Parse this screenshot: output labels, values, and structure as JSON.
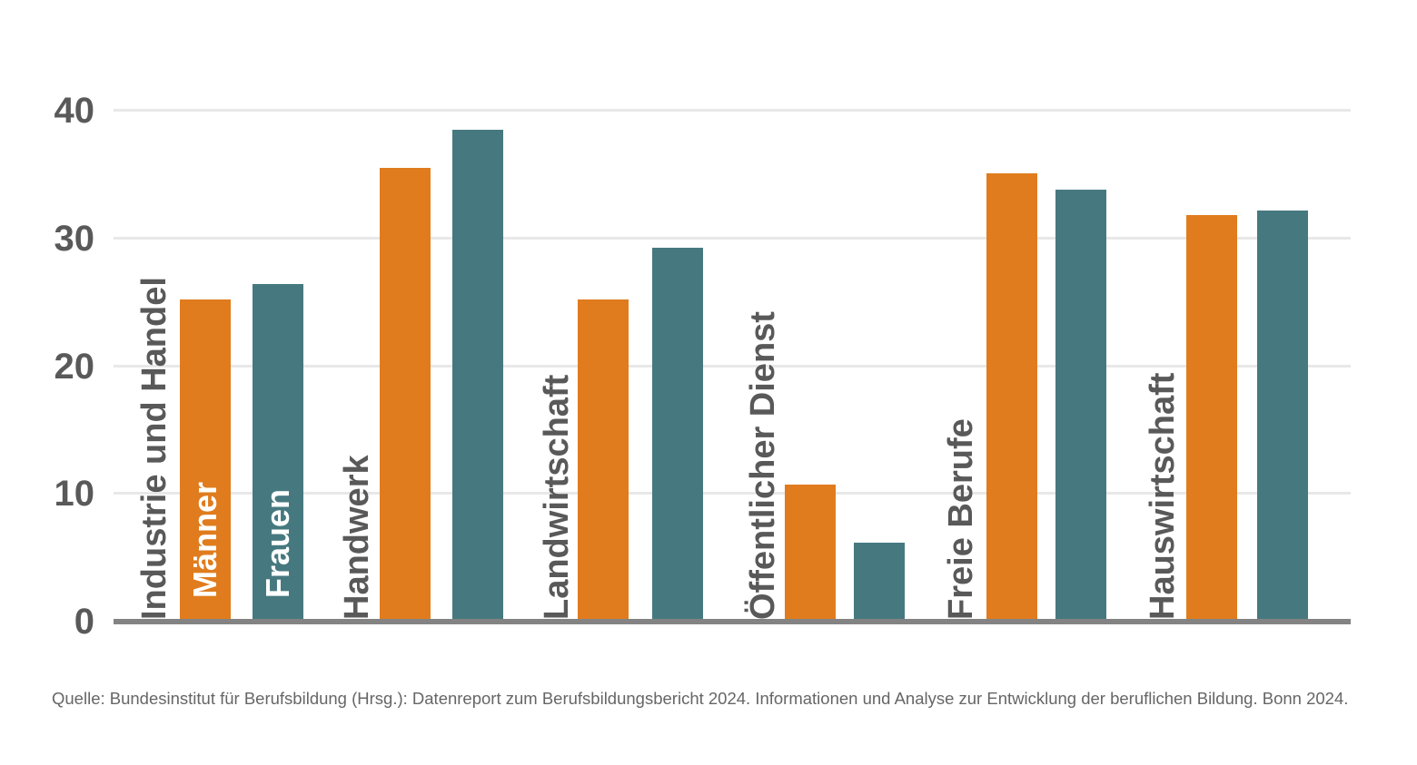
{
  "chart_data": {
    "type": "bar",
    "title": "",
    "xlabel": "",
    "ylabel": "",
    "categories": [
      "Industrie und Handel",
      "Handwerk",
      "Landwirtschaft",
      "Öffentlicher Dienst",
      "Freie Berufe",
      "Hauswirtschaft"
    ],
    "series": [
      {
        "name": "Männer",
        "color": "#E07C1E",
        "values": [
          25.2,
          35.5,
          25.2,
          10.7,
          35.1,
          31.8
        ]
      },
      {
        "name": "Frauen",
        "color": "#46797F",
        "values": [
          26.4,
          38.5,
          29.3,
          6.2,
          33.8,
          32.2
        ]
      }
    ],
    "ylim": [
      0,
      40
    ],
    "yticks": [
      0,
      10,
      20,
      30,
      40
    ],
    "grid": "horizontal",
    "legend_position": "inside-first-group-bars"
  },
  "colors": {
    "axis_text": "#595959",
    "gridline": "#e8e8e8",
    "baseline": "#838383",
    "inner_label_text": "#ffffff",
    "source_text": "#666666",
    "background": "#ffffff"
  },
  "source_note": "Quelle: Bundesinstitut für Berufsbildung (Hrsg.): Datenreport zum Berufsbildungsbericht 2024. Informationen und Analyse zur Entwicklung der beruflichen Bildung. Bonn 2024."
}
